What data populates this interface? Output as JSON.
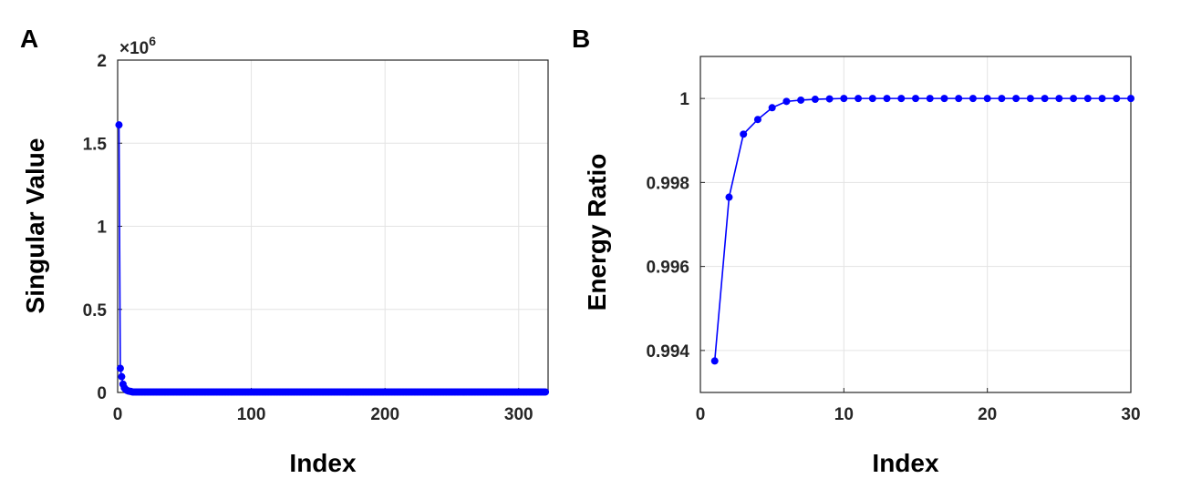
{
  "chart_data": [
    {
      "panel": "A",
      "type": "scatter",
      "line": true,
      "xlabel": "Index",
      "ylabel": "Singular Value",
      "y_scale_multiplier": "×10",
      "y_scale_exponent": "6",
      "xlim": [
        0,
        322
      ],
      "ylim": [
        0,
        2
      ],
      "xticks": [
        0,
        100,
        200,
        300
      ],
      "xtick_labels": [
        "0",
        "100",
        "200",
        "300"
      ],
      "yticks": [
        0,
        0.5,
        1,
        1.5,
        2
      ],
      "ytick_labels": [
        "0",
        "0.5",
        "1",
        "1.5",
        "2"
      ],
      "grid": true,
      "color": "#0000ff",
      "series": [
        {
          "x_start": 1,
          "x_end": 320,
          "head_values": [
            1.61,
            0.145,
            0.095,
            0.05,
            0.028,
            0.018,
            0.012,
            0.009,
            0.007,
            0.006
          ],
          "tail_value": 0.003
        }
      ]
    },
    {
      "panel": "B",
      "type": "line",
      "xlabel": "Index",
      "ylabel": "Energy Ratio",
      "xlim": [
        0,
        30
      ],
      "ylim": [
        0.993,
        1.001
      ],
      "xticks": [
        0,
        10,
        20,
        30
      ],
      "xtick_labels": [
        "0",
        "10",
        "20",
        "30"
      ],
      "yticks": [
        0.994,
        0.996,
        0.998,
        1
      ],
      "ytick_labels": [
        "0.994",
        "0.996",
        "0.998",
        "1"
      ],
      "grid": true,
      "color": "#0000ff",
      "series": [
        {
          "x": [
            1,
            2,
            3,
            4,
            5,
            6,
            7,
            8,
            9,
            10,
            11,
            12,
            13,
            14,
            15,
            16,
            17,
            18,
            19,
            20,
            21,
            22,
            23,
            24,
            25,
            26,
            27,
            28,
            29,
            30
          ],
          "values": [
            0.99375,
            0.99765,
            0.99915,
            0.9995,
            0.99978,
            0.99993,
            0.99996,
            0.99998,
            0.99999,
            1,
            1,
            1,
            1,
            1,
            1,
            1,
            1,
            1,
            1,
            1,
            1,
            1,
            1,
            1,
            1,
            1,
            1,
            1,
            1,
            1
          ]
        }
      ]
    }
  ]
}
